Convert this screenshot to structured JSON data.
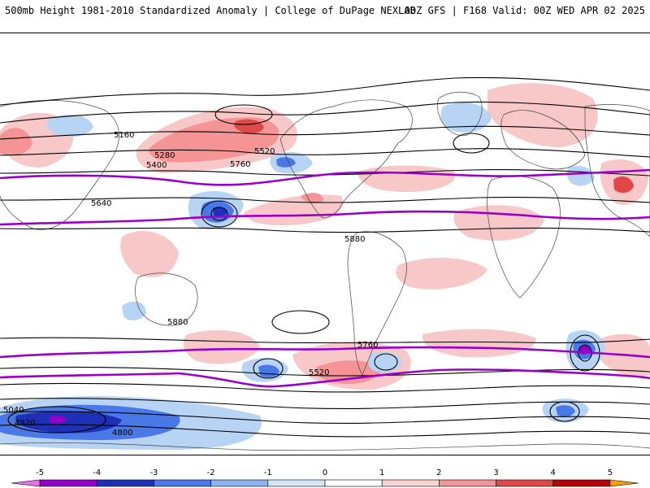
{
  "header": {
    "left_title": "500mb Height 1981-2010 Standardized Anomaly | College of DuPage NEXLAB",
    "right_title": "00Z GFS | F168 Valid: 00Z WED APR 02 2025"
  },
  "map": {
    "projection": "global cylindrical",
    "field": "500mb Height Standardized Anomaly",
    "height_contour_labels": [
      "5160",
      "5280",
      "5520",
      "5400",
      "5640",
      "5760",
      "5880",
      "5040",
      "4920",
      "4800",
      "5520",
      "5760",
      "5880"
    ],
    "highlighted_contours": [
      {
        "label": "5520",
        "color": "#9b00c8"
      },
      {
        "label": "5760",
        "color": "#9b00c8"
      }
    ],
    "anomaly_colors": {
      "strong_negative": "#2244cc",
      "weak_negative": "#b8d4f4",
      "weak_positive": "#f8c8c8",
      "strong_positive": "#e84b4b",
      "contour_color": "#000000",
      "highlight_contour": "#9b00c8"
    }
  },
  "colorbar": {
    "tick_labels": [
      "-5",
      "-4",
      "-3",
      "-2",
      "-1",
      "0",
      "1",
      "2",
      "3",
      "4",
      "5"
    ],
    "segments": [
      {
        "from": -5.5,
        "to": -5,
        "color": "#e870e8"
      },
      {
        "from": -5,
        "to": -4,
        "color": "#9400c8"
      },
      {
        "from": -4,
        "to": -3,
        "color": "#1e2fb8"
      },
      {
        "from": -3,
        "to": -2,
        "color": "#4a78e6"
      },
      {
        "from": -2,
        "to": -1,
        "color": "#8cb4f0"
      },
      {
        "from": -1,
        "to": 0,
        "color": "#d4e6fa"
      },
      {
        "from": 0,
        "to": 1,
        "color": "#ffffff"
      },
      {
        "from": 1,
        "to": 2,
        "color": "#fad2d2"
      },
      {
        "from": 2,
        "to": 3,
        "color": "#f49494"
      },
      {
        "from": 3,
        "to": 4,
        "color": "#e04848"
      },
      {
        "from": 4,
        "to": 5,
        "color": "#b8000a"
      },
      {
        "from": 5,
        "to": 5.5,
        "color": "#f0a010"
      }
    ]
  }
}
